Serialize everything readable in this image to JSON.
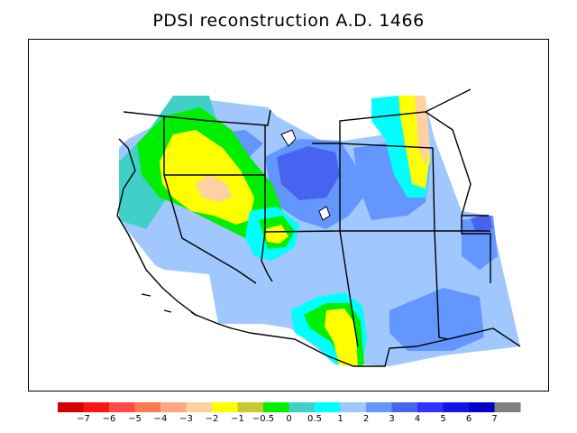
{
  "title": "PDSI reconstruction A.D. 1466",
  "legend": {
    "colors": [
      "#d40000",
      "#ff1414",
      "#ff4848",
      "#ff7a50",
      "#ffa880",
      "#ffd0a0",
      "#ffff00",
      "#c8c832",
      "#00ee00",
      "#40d0c8",
      "#00ffff",
      "#a0c8ff",
      "#6496ff",
      "#4664f0",
      "#3232ff",
      "#1414e6",
      "#0000c8",
      "#808080"
    ],
    "labels": [
      "−7",
      "−6",
      "−5",
      "−4",
      "−3",
      "−2",
      "−1",
      "−0.5",
      "0",
      "0.5",
      "1",
      "2",
      "3",
      "4",
      "5",
      "6",
      "7"
    ]
  }
}
